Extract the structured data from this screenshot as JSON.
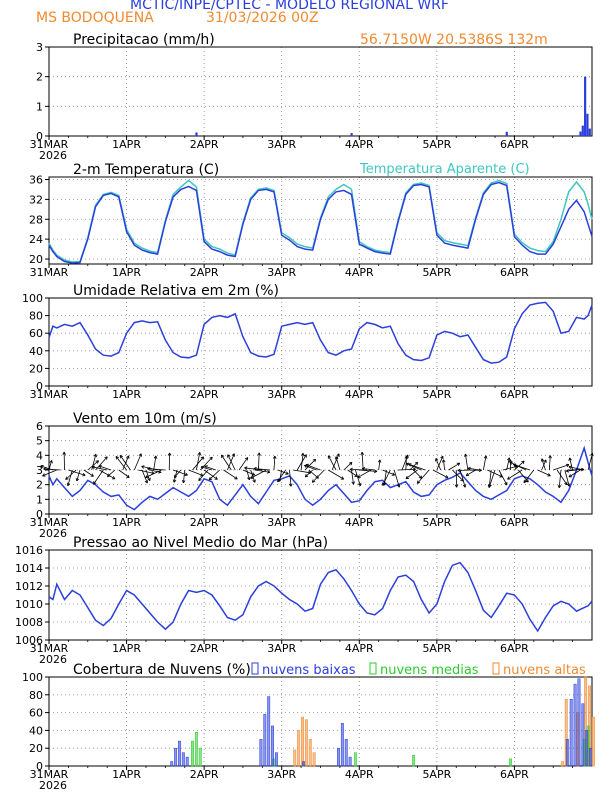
{
  "header": {
    "line1": "MCTIC/INPE/CPTEC - MODELO REGIONAL WRF",
    "station": "MS BODOQUENA",
    "run": "31/03/2026 00Z",
    "coords": "56.7150W 20.5386S 132m"
  },
  "colors": {
    "blue": "#2a3fdc",
    "orange": "#f08a30",
    "cyan": "#3fc6c0",
    "green": "#2ecc2e",
    "black": "#000000"
  },
  "x_ticks": [
    "31MAR",
    "1APR",
    "2APR",
    "3APR",
    "4APR",
    "5APR",
    "6APR"
  ],
  "x_year": "2026",
  "chart_data": [
    {
      "type": "bar",
      "id": "precip",
      "title": "Precipitacao (mm/h)",
      "ylim": [
        0,
        3
      ],
      "yticks": [
        "0",
        "1",
        "2",
        "3"
      ],
      "bars": [
        [
          1.9,
          0.12
        ],
        [
          3.9,
          0.1
        ],
        [
          5.9,
          0.14
        ],
        [
          6.85,
          0.15
        ],
        [
          6.88,
          0.35
        ],
        [
          6.91,
          2.0
        ],
        [
          6.94,
          0.75
        ],
        [
          6.97,
          0.25
        ]
      ]
    },
    {
      "type": "line",
      "id": "temp",
      "title": "2-m Temperatura (C)",
      "legend": "Temperatura Aparente (C)",
      "ylim": [
        19,
        36.5
      ],
      "yticks": [
        "20",
        "24",
        "28",
        "32",
        "36"
      ],
      "series": [
        {
          "name": "Temperatura",
          "x": [
            0,
            0.05,
            0.1,
            0.2,
            0.3,
            0.4,
            0.5,
            0.6,
            0.7,
            0.8,
            0.9,
            1.0,
            1.1,
            1.2,
            1.3,
            1.4,
            1.5,
            1.6,
            1.7,
            1.8,
            1.9,
            2.0,
            2.1,
            2.2,
            2.3,
            2.4,
            2.5,
            2.6,
            2.7,
            2.8,
            2.9,
            3.0,
            3.1,
            3.2,
            3.3,
            3.4,
            3.5,
            3.6,
            3.7,
            3.8,
            3.9,
            4.0,
            4.1,
            4.2,
            4.3,
            4.4,
            4.5,
            4.6,
            4.7,
            4.8,
            4.9,
            5.0,
            5.1,
            5.2,
            5.3,
            5.4,
            5.5,
            5.6,
            5.7,
            5.8,
            5.9,
            6.0,
            6.1,
            6.2,
            6.3,
            6.4,
            6.5,
            6.6,
            6.7,
            6.8,
            6.9,
            6.95,
            7.0
          ],
          "y": [
            22.8,
            21.5,
            20.5,
            19.5,
            19.2,
            19.3,
            24.0,
            30.5,
            32.8,
            33.2,
            32.5,
            25.5,
            22.8,
            21.8,
            21.3,
            21.0,
            27.5,
            32.5,
            34.0,
            34.6,
            33.8,
            23.5,
            22.0,
            21.5,
            20.8,
            20.5,
            27.0,
            32.0,
            33.8,
            34.0,
            33.5,
            24.8,
            23.8,
            22.5,
            22.0,
            21.8,
            28.0,
            32.0,
            33.5,
            33.8,
            33.0,
            23.0,
            22.2,
            21.5,
            21.2,
            21.0,
            27.5,
            33.0,
            34.8,
            35.0,
            34.5,
            24.8,
            23.2,
            22.8,
            22.5,
            22.2,
            28.0,
            33.0,
            35.0,
            35.4,
            34.8,
            24.5,
            22.8,
            21.5,
            21.0,
            21.0,
            23.0,
            26.5,
            30.0,
            31.8,
            29.5,
            27.0,
            24.5
          ]
        },
        {
          "name": "Temperatura Aparente",
          "x": [
            0,
            0.05,
            0.1,
            0.2,
            0.3,
            0.4,
            0.5,
            0.6,
            0.7,
            0.8,
            0.9,
            1.0,
            1.1,
            1.2,
            1.3,
            1.4,
            1.5,
            1.6,
            1.7,
            1.8,
            1.9,
            2.0,
            2.1,
            2.2,
            2.3,
            2.4,
            2.5,
            2.6,
            2.7,
            2.8,
            2.9,
            3.0,
            3.1,
            3.2,
            3.3,
            3.4,
            3.5,
            3.6,
            3.7,
            3.8,
            3.9,
            4.0,
            4.1,
            4.2,
            4.3,
            4.4,
            4.5,
            4.6,
            4.7,
            4.8,
            4.9,
            5.0,
            5.1,
            5.2,
            5.3,
            5.4,
            5.5,
            5.6,
            5.7,
            5.8,
            5.9,
            6.0,
            6.1,
            6.2,
            6.3,
            6.4,
            6.5,
            6.6,
            6.7,
            6.8,
            6.9,
            6.95,
            7.0
          ],
          "y": [
            23.2,
            21.8,
            20.8,
            19.8,
            19.4,
            19.5,
            24.3,
            30.8,
            33.0,
            33.4,
            32.8,
            26.0,
            23.2,
            22.2,
            21.6,
            21.3,
            27.8,
            33.0,
            34.5,
            35.8,
            34.5,
            24.0,
            22.5,
            22.0,
            21.2,
            20.8,
            27.3,
            32.3,
            34.0,
            34.3,
            33.8,
            25.3,
            24.3,
            23.0,
            22.5,
            22.2,
            28.3,
            32.5,
            34.0,
            35.0,
            34.0,
            23.5,
            22.5,
            21.8,
            21.5,
            21.3,
            27.8,
            33.3,
            35.0,
            35.3,
            34.8,
            25.3,
            23.7,
            23.3,
            23.0,
            22.7,
            28.3,
            33.3,
            35.3,
            35.8,
            35.2,
            25.0,
            23.3,
            22.2,
            21.7,
            21.5,
            23.5,
            28.0,
            33.5,
            35.5,
            33.5,
            31.0,
            28.0
          ]
        }
      ]
    },
    {
      "type": "line",
      "id": "rh",
      "title": "Umidade Relativa em 2m (%)",
      "ylim": [
        0,
        100
      ],
      "yticks": [
        "0",
        "20",
        "40",
        "60",
        "80",
        "100"
      ],
      "series": [
        {
          "name": "Umidade",
          "x": [
            0,
            0.05,
            0.1,
            0.2,
            0.3,
            0.4,
            0.5,
            0.6,
            0.7,
            0.8,
            0.9,
            1.0,
            1.1,
            1.2,
            1.3,
            1.4,
            1.5,
            1.6,
            1.7,
            1.8,
            1.9,
            2.0,
            2.1,
            2.2,
            2.3,
            2.4,
            2.5,
            2.6,
            2.7,
            2.8,
            2.9,
            3.0,
            3.1,
            3.2,
            3.3,
            3.4,
            3.5,
            3.6,
            3.7,
            3.8,
            3.9,
            4.0,
            4.1,
            4.2,
            4.3,
            4.4,
            4.5,
            4.6,
            4.7,
            4.8,
            4.9,
            5.0,
            5.1,
            5.2,
            5.3,
            5.4,
            5.5,
            5.6,
            5.7,
            5.8,
            5.9,
            6.0,
            6.1,
            6.2,
            6.3,
            6.4,
            6.5,
            6.6,
            6.7,
            6.8,
            6.9,
            6.95,
            7.0
          ],
          "y": [
            55,
            68,
            66,
            70,
            68,
            72,
            58,
            42,
            35,
            34,
            38,
            60,
            72,
            74,
            72,
            73,
            52,
            38,
            33,
            32,
            35,
            70,
            78,
            80,
            78,
            82,
            56,
            38,
            34,
            33,
            36,
            68,
            70,
            72,
            70,
            72,
            52,
            38,
            35,
            40,
            42,
            65,
            72,
            70,
            66,
            68,
            48,
            35,
            30,
            29,
            32,
            58,
            62,
            60,
            56,
            58,
            44,
            30,
            26,
            27,
            33,
            65,
            82,
            92,
            94,
            95,
            85,
            60,
            62,
            78,
            76,
            80,
            92
          ]
        }
      ]
    },
    {
      "type": "line",
      "id": "wind",
      "title": "Vento em 10m (m/s)",
      "ylim": [
        0,
        6
      ],
      "yticks": [
        "0",
        "1",
        "2",
        "3",
        "4",
        "5",
        "6"
      ],
      "series": [
        {
          "name": "Velocidade",
          "x": [
            0,
            0.05,
            0.1,
            0.2,
            0.3,
            0.4,
            0.5,
            0.6,
            0.7,
            0.8,
            0.9,
            1.0,
            1.1,
            1.2,
            1.3,
            1.4,
            1.5,
            1.6,
            1.7,
            1.8,
            1.9,
            2.0,
            2.1,
            2.2,
            2.3,
            2.4,
            2.5,
            2.6,
            2.7,
            2.8,
            2.9,
            3.0,
            3.1,
            3.2,
            3.3,
            3.4,
            3.5,
            3.6,
            3.7,
            3.8,
            3.9,
            4.0,
            4.1,
            4.2,
            4.3,
            4.4,
            4.5,
            4.6,
            4.7,
            4.8,
            4.9,
            5.0,
            5.1,
            5.2,
            5.3,
            5.4,
            5.5,
            5.6,
            5.7,
            5.8,
            5.9,
            6.0,
            6.1,
            6.2,
            6.3,
            6.4,
            6.5,
            6.6,
            6.7,
            6.8,
            6.9,
            6.95,
            7.0
          ],
          "y": [
            2.6,
            2.0,
            2.4,
            1.8,
            1.2,
            1.6,
            2.3,
            2.0,
            1.5,
            1.2,
            1.3,
            0.6,
            0.3,
            0.8,
            1.2,
            1.0,
            1.4,
            1.8,
            1.5,
            1.2,
            1.6,
            2.4,
            2.2,
            1.0,
            0.6,
            1.3,
            2.0,
            1.2,
            0.7,
            1.5,
            2.3,
            2.4,
            2.6,
            2.0,
            1.0,
            0.6,
            1.0,
            1.6,
            2.0,
            1.4,
            0.8,
            0.9,
            1.6,
            2.2,
            2.3,
            1.8,
            2.0,
            2.2,
            1.5,
            1.2,
            1.3,
            2.0,
            2.3,
            2.5,
            2.8,
            2.2,
            1.6,
            1.2,
            1.0,
            1.3,
            1.6,
            2.4,
            2.6,
            2.4,
            2.0,
            1.5,
            1.2,
            0.8,
            1.6,
            3.0,
            4.5,
            3.5,
            2.6
          ]
        }
      ]
    },
    {
      "type": "line",
      "id": "pres",
      "title": "Pressao ao Nivel Medio do Mar (hPa)",
      "ylim": [
        1006,
        1016
      ],
      "yticks": [
        "1006",
        "1008",
        "1010",
        "1012",
        "1014",
        "1016"
      ],
      "series": [
        {
          "name": "Pressao",
          "x": [
            0,
            0.05,
            0.1,
            0.2,
            0.3,
            0.4,
            0.5,
            0.6,
            0.7,
            0.8,
            0.9,
            1.0,
            1.1,
            1.2,
            1.3,
            1.4,
            1.5,
            1.6,
            1.7,
            1.8,
            1.9,
            2.0,
            2.1,
            2.2,
            2.3,
            2.4,
            2.5,
            2.6,
            2.7,
            2.8,
            2.9,
            3.0,
            3.1,
            3.2,
            3.3,
            3.4,
            3.5,
            3.6,
            3.7,
            3.8,
            3.9,
            4.0,
            4.1,
            4.2,
            4.3,
            4.4,
            4.5,
            4.6,
            4.7,
            4.8,
            4.9,
            5.0,
            5.1,
            5.2,
            5.3,
            5.4,
            5.5,
            5.6,
            5.7,
            5.8,
            5.9,
            6.0,
            6.1,
            6.2,
            6.3,
            6.4,
            6.5,
            6.6,
            6.7,
            6.8,
            6.9,
            6.95,
            7.0
          ],
          "y": [
            1010.8,
            1010.5,
            1012.2,
            1010.5,
            1011.5,
            1011.0,
            1009.6,
            1008.2,
            1007.6,
            1008.4,
            1010.0,
            1011.5,
            1011.0,
            1010.0,
            1009.0,
            1008.0,
            1007.2,
            1008.0,
            1010.0,
            1011.5,
            1011.3,
            1011.5,
            1011.0,
            1009.8,
            1008.5,
            1008.2,
            1008.8,
            1010.8,
            1012.0,
            1012.5,
            1012.0,
            1011.2,
            1010.5,
            1010.0,
            1009.2,
            1009.5,
            1012.2,
            1013.5,
            1013.8,
            1012.8,
            1011.5,
            1010.0,
            1009.0,
            1008.8,
            1009.5,
            1011.5,
            1013.0,
            1013.2,
            1012.5,
            1010.5,
            1009.0,
            1010.0,
            1012.5,
            1014.3,
            1014.6,
            1013.5,
            1011.5,
            1009.3,
            1008.5,
            1009.8,
            1011.2,
            1011.0,
            1010.0,
            1008.3,
            1007.0,
            1008.5,
            1009.8,
            1010.3,
            1010.0,
            1009.2,
            1009.6,
            1009.8,
            1010.3
          ]
        }
      ]
    },
    {
      "type": "bar",
      "id": "cloud",
      "title": "Cobertura de Nuvens (%)",
      "legend": [
        "nuvens baixas",
        "nuvens medias",
        "nuvens altas"
      ],
      "ylim": [
        0,
        100
      ],
      "yticks": [
        "0",
        "20",
        "40",
        "60",
        "80",
        "100"
      ],
      "low": [
        [
          1.6,
          5
        ],
        [
          1.65,
          20
        ],
        [
          1.7,
          28
        ],
        [
          1.75,
          15
        ],
        [
          1.8,
          10
        ],
        [
          2.75,
          30
        ],
        [
          2.8,
          58
        ],
        [
          2.85,
          78
        ],
        [
          2.9,
          45
        ],
        [
          2.95,
          15
        ],
        [
          3.3,
          5
        ],
        [
          3.75,
          20
        ],
        [
          3.8,
          48
        ],
        [
          3.85,
          30
        ],
        [
          3.9,
          10
        ],
        [
          6.7,
          30
        ],
        [
          6.75,
          75
        ],
        [
          6.8,
          92
        ],
        [
          6.85,
          98
        ],
        [
          6.9,
          70
        ],
        [
          6.95,
          40
        ],
        [
          7.0,
          20
        ]
      ],
      "mid": [
        [
          1.85,
          28
        ],
        [
          1.9,
          38
        ],
        [
          1.95,
          20
        ],
        [
          2.9,
          8
        ],
        [
          3.95,
          15
        ],
        [
          4.7,
          12
        ],
        [
          5.95,
          8
        ],
        [
          6.9,
          30
        ],
        [
          6.95,
          45
        ]
      ],
      "high": [
        [
          3.15,
          18
        ],
        [
          3.2,
          40
        ],
        [
          3.25,
          55
        ],
        [
          3.3,
          52
        ],
        [
          3.35,
          30
        ],
        [
          3.4,
          15
        ],
        [
          6.6,
          5
        ],
        [
          6.65,
          75
        ],
        [
          6.8,
          60
        ],
        [
          6.9,
          100
        ],
        [
          6.95,
          90
        ],
        [
          7.0,
          55
        ]
      ]
    }
  ]
}
